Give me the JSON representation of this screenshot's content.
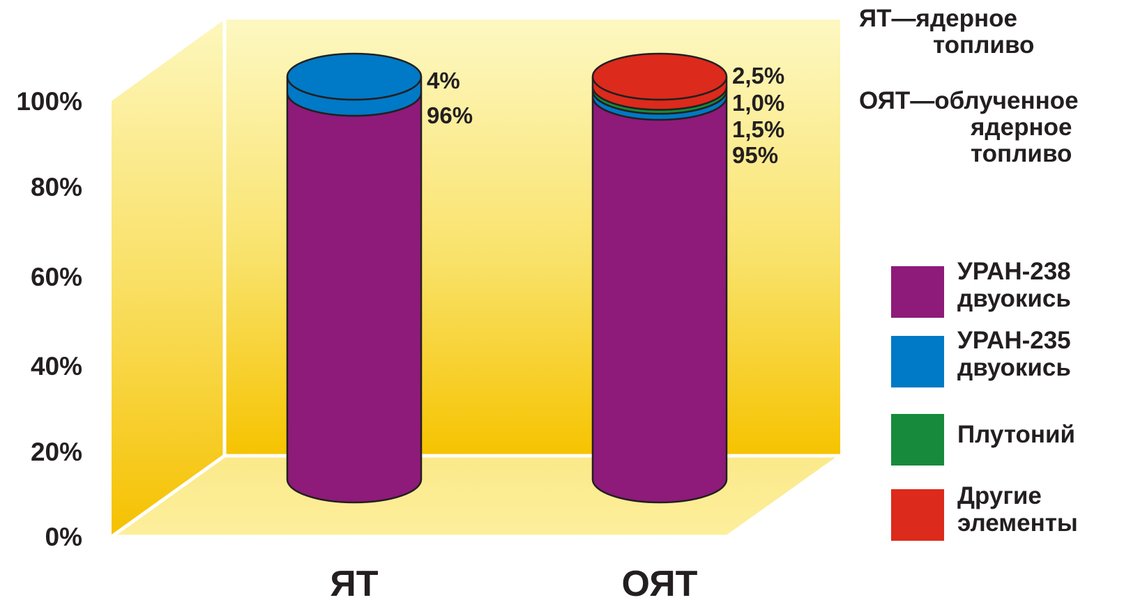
{
  "chart_data": {
    "type": "bar",
    "stacked": true,
    "style": "3d-cylinder",
    "categories": [
      "ЯТ",
      "ОЯТ"
    ],
    "series": [
      {
        "name": "УРАН-238 двуокись",
        "color": "#8e1a7a",
        "values": [
          96,
          95
        ]
      },
      {
        "name": "УРАН-235 двуокись",
        "color": "#0079c6",
        "values": [
          4,
          1.5
        ]
      },
      {
        "name": "Плутоний",
        "color": "#178a3c",
        "values": [
          0,
          1.0
        ]
      },
      {
        "name": "Другие элементы",
        "color": "#dc2a1c",
        "values": [
          0,
          2.5
        ]
      }
    ],
    "data_labels": [
      [
        "96%",
        "4%"
      ],
      [
        "95%",
        "1,5%",
        "1,0%",
        "2,5%"
      ]
    ],
    "y_ticks": [
      "0%",
      "20%",
      "40%",
      "60%",
      "80%",
      "100%"
    ],
    "ylim": [
      0,
      100
    ],
    "legend_position": "right",
    "grid": false
  },
  "legend": [
    {
      "label": "УРАН-238\nдвуокись",
      "color": "#8e1a7a"
    },
    {
      "label": "УРАН-235\nдвуокись",
      "color": "#0079c6"
    },
    {
      "label": "Плутоний",
      "color": "#178a3c"
    },
    {
      "label": "Другие\nэлементы",
      "color": "#dc2a1c"
    }
  ],
  "notes": [
    {
      "key": "ЯТ—ядерное",
      "value": "топливо"
    },
    {
      "key": "ОЯТ—облученное",
      "value": "ядерное\nтопливо"
    }
  ],
  "colors": {
    "wall_top": "#fdf6b0",
    "wall_bottom": "#f6c400",
    "outline": "#231f20"
  }
}
